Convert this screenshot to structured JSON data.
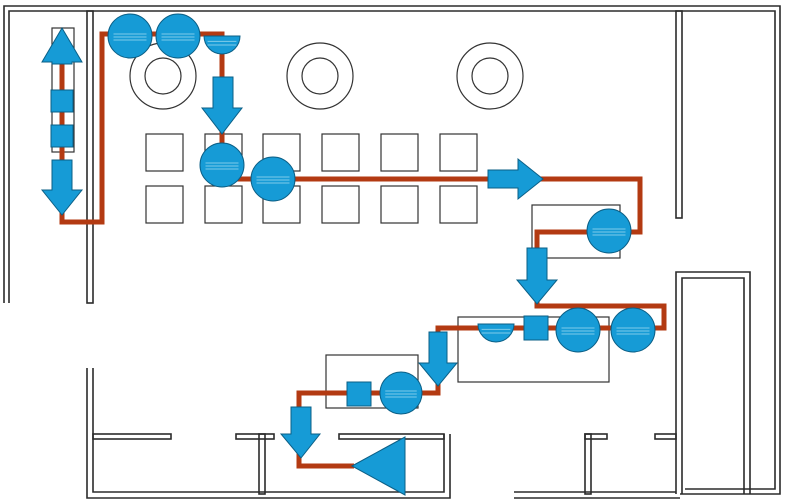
{
  "colors": {
    "wall": "#2b2b2b",
    "path": "#b33a12",
    "symbol_fill": "#169bd6",
    "symbol_stroke": "#0b5f86",
    "symbol_stripe": "#7fcbe9",
    "outline": "#333333"
  },
  "icons": {
    "circle": "operation-circle-icon",
    "half_circle": "delay-half-circle-icon",
    "square": "inspection-square-icon",
    "triangle": "storage-triangle-icon",
    "arrow": "transport-arrow-icon"
  }
}
